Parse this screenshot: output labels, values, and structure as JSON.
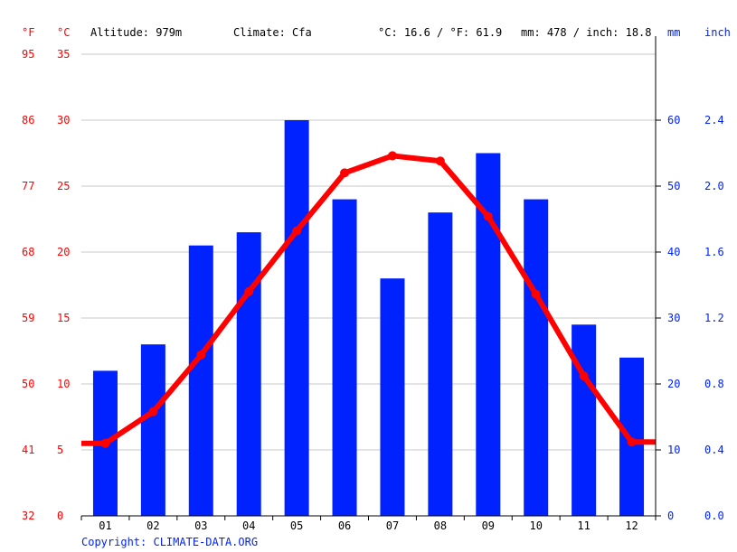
{
  "header": {
    "unit_f": "°F",
    "unit_c": "°C",
    "altitude": "Altitude: 979m",
    "climate": "Climate: Cfa",
    "temp_avg": "°C: 16.6 / °F: 61.9",
    "precip_total": "mm: 478 / inch: 18.8",
    "unit_mm": "mm",
    "unit_inch": "inch"
  },
  "footer": {
    "copyright": "Copyright: CLIMATE-DATA.ORG"
  },
  "colors": {
    "temperature": "#ff0000",
    "precipitation": "#0022ff",
    "grid": "#c8c8c8",
    "text": "#000000"
  },
  "chart_data": {
    "type": "bar",
    "categories": [
      "01",
      "02",
      "03",
      "04",
      "05",
      "06",
      "07",
      "08",
      "09",
      "10",
      "11",
      "12"
    ],
    "series": [
      {
        "type": "bar",
        "axis": "right",
        "unit": "mm",
        "values": [
          22,
          26,
          41,
          43,
          60,
          48,
          36,
          46,
          55,
          48,
          29,
          24
        ]
      },
      {
        "type": "line",
        "axis": "left",
        "unit": "°C",
        "values": [
          5.5,
          7.9,
          12.2,
          17.0,
          21.6,
          26.0,
          27.3,
          26.9,
          22.7,
          16.8,
          10.6,
          5.6
        ]
      }
    ],
    "left_axis_c": {
      "ticks": [
        "0",
        "5",
        "10",
        "15",
        "20",
        "25",
        "30",
        "35"
      ],
      "range": [
        0,
        35
      ]
    },
    "left_axis_f": {
      "ticks": [
        "32",
        "41",
        "50",
        "59",
        "68",
        "77",
        "86",
        "95"
      ]
    },
    "right_axis_mm": {
      "ticks": [
        "0",
        "10",
        "20",
        "30",
        "40",
        "50",
        "60"
      ],
      "range": [
        0,
        70
      ]
    },
    "right_axis_inch": {
      "ticks": [
        "0.0",
        "0.4",
        "0.8",
        "1.2",
        "1.6",
        "2.0",
        "2.4"
      ]
    },
    "grid": true
  }
}
